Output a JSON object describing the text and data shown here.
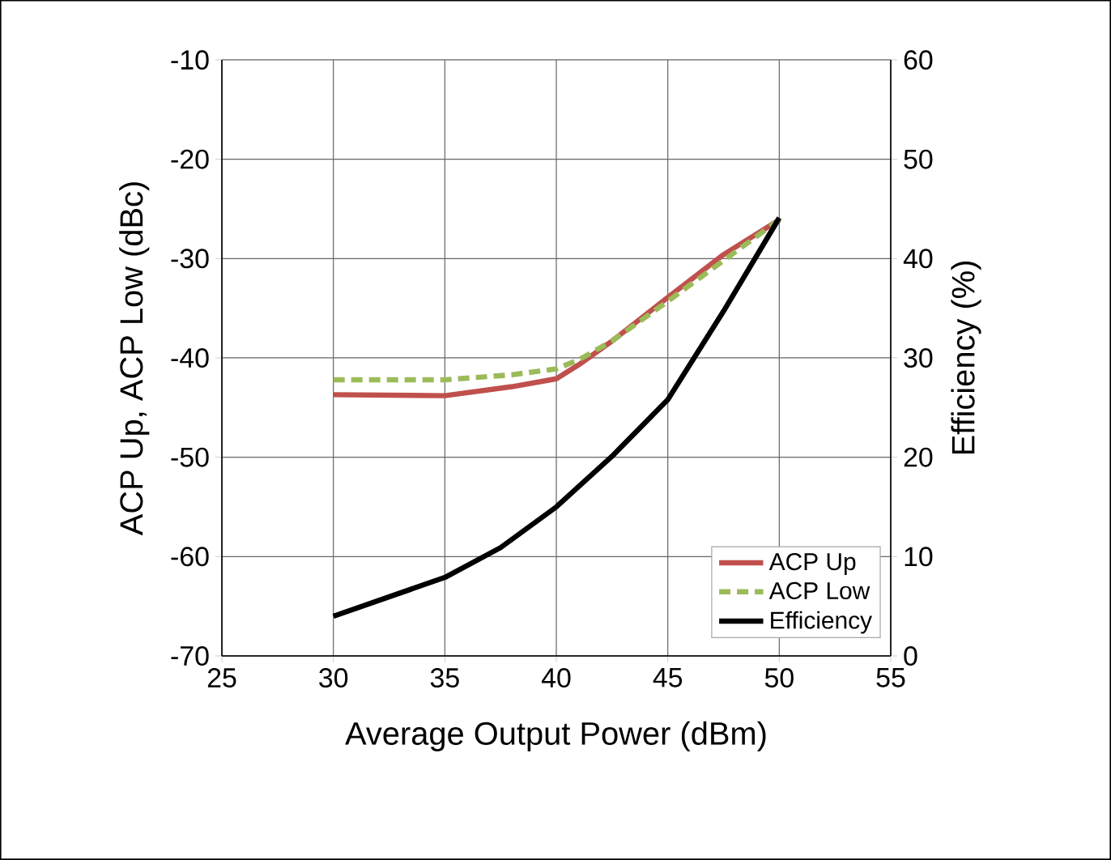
{
  "chart_data": {
    "type": "line",
    "xlabel": "Average Output Power (dBm)",
    "ylabel": "ACP Up, ACP Low (dBc)",
    "y2label": "Efficiency (%)",
    "xlim": [
      25,
      55
    ],
    "xticks": [
      25,
      30,
      35,
      40,
      45,
      50,
      55
    ],
    "ylim": [
      -70,
      -10
    ],
    "yticks": [
      -70,
      -60,
      -50,
      -40,
      -30,
      -20,
      -10
    ],
    "y2lim": [
      0,
      60
    ],
    "y2ticks": [
      0,
      10,
      20,
      30,
      40,
      50,
      60
    ],
    "grid": true,
    "legend": "bottom right",
    "marker": "none",
    "series": [
      {
        "name": "ACP Up",
        "color": "#c0504d",
        "line_style": "solid",
        "x": [
          30,
          35,
          38,
          40,
          41,
          42.5,
          45,
          47.5,
          50
        ],
        "values": [
          -43.7,
          -43.8,
          -42.9,
          -42.1,
          -40.7,
          -38.3,
          -33.9,
          -29.6,
          -26.1
        ]
      },
      {
        "name": "ACP Low",
        "color": "#9bbb59",
        "line_style": "dashed",
        "x": [
          30,
          35,
          38,
          40,
          41,
          42.5,
          45,
          47.5,
          50
        ],
        "values": [
          -42.2,
          -42.2,
          -41.7,
          -41.1,
          -40.2,
          -38.3,
          -34.3,
          -30.2,
          -26.1
        ]
      },
      {
        "name": "Efficiency",
        "color": "#000000",
        "line_style": "solid",
        "axis": "y2",
        "x": [
          30,
          35,
          37.5,
          40,
          42.5,
          45,
          47.5,
          50
        ],
        "values": [
          4.0,
          7.9,
          10.9,
          15.0,
          20.1,
          25.8,
          34.7,
          44.1
        ]
      }
    ]
  }
}
